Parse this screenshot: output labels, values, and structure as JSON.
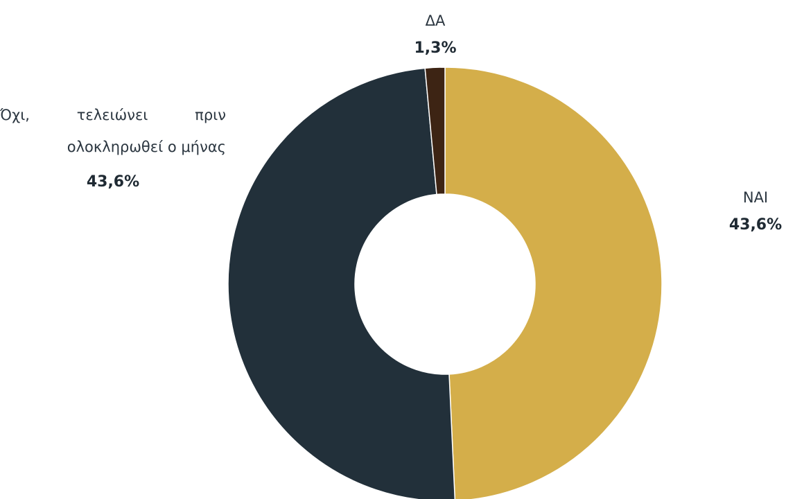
{
  "chart_data": {
    "type": "donut",
    "categories": [
      "ΝΑΙ",
      "Όχι, τελειώνει πριν ολοκληρωθεί ο μήνας",
      "ΔΑ"
    ],
    "values": [
      43.6,
      43.6,
      1.3
    ],
    "value_labels": [
      "43,6%",
      "43,6%",
      "1,3%"
    ],
    "colors": [
      "#d4ae4a",
      "#22303a",
      "#3d2414"
    ]
  }
}
